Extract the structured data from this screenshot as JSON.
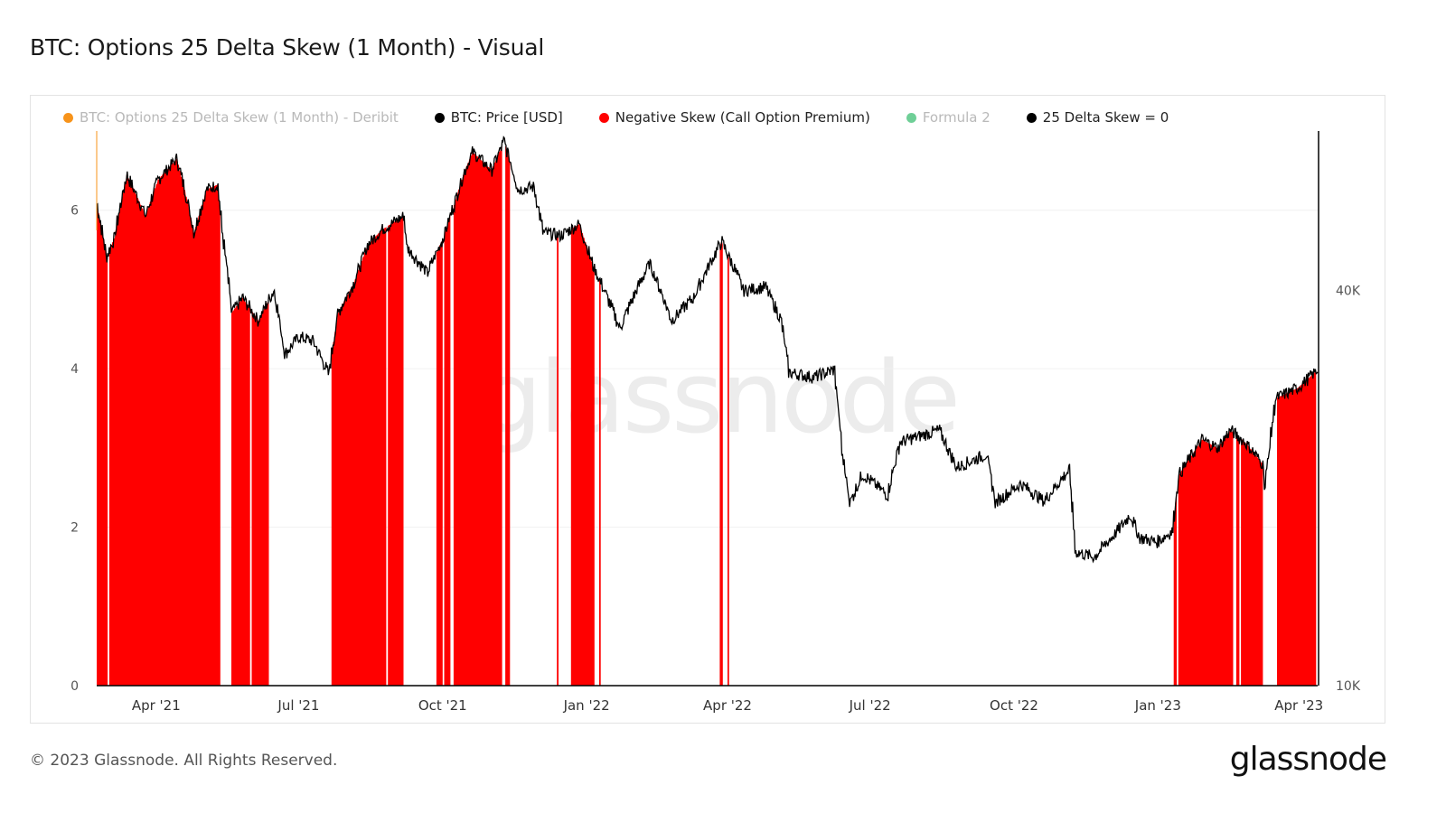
{
  "title": "BTC: Options 25 Delta Skew (1 Month) - Visual",
  "footer": {
    "copyright": "© 2023 Glassnode. All Rights Reserved.",
    "brand": "glassnode"
  },
  "watermark": "glassnode",
  "legend": [
    {
      "label": "BTC: Options 25 Delta Skew (1 Month) - Deribit",
      "color": "#f7931a",
      "muted": true
    },
    {
      "label": "BTC: Price [USD]",
      "color": "#000000",
      "muted": false
    },
    {
      "label": "Negative Skew (Call Option Premium)",
      "color": "#ff0000",
      "muted": false
    },
    {
      "label": "Formula 2",
      "color": "#6fcf97",
      "muted": true
    },
    {
      "label": "25 Delta Skew = 0",
      "color": "#000000",
      "muted": false
    }
  ],
  "chart_data": {
    "type": "area",
    "x_ticks": [
      "Apr '21",
      "Jul '21",
      "Oct '21",
      "Jan '22",
      "Apr '22",
      "Jul '22",
      "Oct '22",
      "Jan '23",
      "Apr '23"
    ],
    "x_tick_dates": [
      "2021-04-01",
      "2021-07-01",
      "2021-10-01",
      "2022-01-01",
      "2022-04-01",
      "2022-07-01",
      "2022-10-01",
      "2023-01-01",
      "2023-04-01"
    ],
    "x_range": [
      "2021-02-22",
      "2023-04-13"
    ],
    "left_axis": {
      "ticks": [
        "0",
        "2",
        "4",
        "6"
      ],
      "range": [
        0,
        7
      ]
    },
    "right_axis": {
      "ticks": [
        "10K",
        "40K"
      ],
      "scale": "log",
      "range": [
        10000,
        70000
      ]
    },
    "price_series": {
      "name": "BTC: Price [USD]",
      "color": "#000000",
      "points": [
        [
          "2021-02-22",
          54000
        ],
        [
          "2021-02-28",
          45000
        ],
        [
          "2021-03-05",
          48000
        ],
        [
          "2021-03-13",
          60000
        ],
        [
          "2021-03-25",
          52000
        ],
        [
          "2021-04-02",
          59000
        ],
        [
          "2021-04-14",
          63500
        ],
        [
          "2021-04-25",
          49000
        ],
        [
          "2021-05-03",
          57000
        ],
        [
          "2021-05-10",
          58000
        ],
        [
          "2021-05-13",
          49000
        ],
        [
          "2021-05-19",
          37000
        ],
        [
          "2021-05-26",
          39000
        ],
        [
          "2021-06-05",
          36000
        ],
        [
          "2021-06-15",
          40000
        ],
        [
          "2021-06-22",
          32000
        ],
        [
          "2021-07-01",
          34000
        ],
        [
          "2021-07-10",
          33500
        ],
        [
          "2021-07-20",
          29800
        ],
        [
          "2021-07-26",
          37000
        ],
        [
          "2021-08-05",
          41000
        ],
        [
          "2021-08-14",
          47000
        ],
        [
          "2021-08-23",
          49500
        ],
        [
          "2021-09-06",
          52000
        ],
        [
          "2021-09-08",
          46500
        ],
        [
          "2021-09-21",
          42500
        ],
        [
          "2021-10-01",
          48000
        ],
        [
          "2021-10-08",
          54000
        ],
        [
          "2021-10-15",
          61000
        ],
        [
          "2021-10-20",
          65000
        ],
        [
          "2021-11-01",
          61000
        ],
        [
          "2021-11-09",
          67500
        ],
        [
          "2021-11-18",
          57000
        ],
        [
          "2021-11-28",
          57500
        ],
        [
          "2021-12-04",
          49000
        ],
        [
          "2021-12-15",
          48500
        ],
        [
          "2021-12-27",
          50500
        ],
        [
          "2022-01-05",
          43500
        ],
        [
          "2022-01-22",
          35000
        ],
        [
          "2022-02-10",
          44000
        ],
        [
          "2022-02-24",
          36000
        ],
        [
          "2022-03-10",
          39000
        ],
        [
          "2022-03-28",
          47500
        ],
        [
          "2022-04-11",
          40000
        ],
        [
          "2022-04-25",
          40500
        ],
        [
          "2022-05-05",
          36000
        ],
        [
          "2022-05-10",
          30000
        ],
        [
          "2022-05-26",
          29500
        ],
        [
          "2022-06-08",
          30300
        ],
        [
          "2022-06-13",
          22500
        ],
        [
          "2022-06-18",
          19000
        ],
        [
          "2022-06-26",
          21000
        ],
        [
          "2022-07-12",
          19500
        ],
        [
          "2022-07-20",
          23500
        ],
        [
          "2022-08-14",
          24500
        ],
        [
          "2022-08-25",
          21500
        ],
        [
          "2022-09-13",
          22500
        ],
        [
          "2022-09-19",
          19000
        ],
        [
          "2022-10-05",
          20300
        ],
        [
          "2022-10-20",
          19100
        ],
        [
          "2022-11-05",
          21300
        ],
        [
          "2022-11-09",
          16000
        ],
        [
          "2022-11-21",
          15700
        ],
        [
          "2022-12-05",
          17100
        ],
        [
          "2022-12-14",
          18200
        ],
        [
          "2022-12-20",
          16800
        ],
        [
          "2022-12-31",
          16550
        ],
        [
          "2023-01-10",
          17200
        ],
        [
          "2023-01-14",
          20900
        ],
        [
          "2023-01-29",
          23700
        ],
        [
          "2023-02-08",
          23000
        ],
        [
          "2023-02-16",
          24500
        ],
        [
          "2023-02-26",
          23400
        ],
        [
          "2023-03-09",
          21700
        ],
        [
          "2023-03-10",
          20000
        ],
        [
          "2023-03-17",
          27400
        ],
        [
          "2023-03-31",
          28400
        ],
        [
          "2023-04-13",
          30300
        ]
      ]
    },
    "negative_skew_periods": {
      "name": "Negative Skew (Call Option Premium)",
      "color": "#ff0000",
      "ranges": [
        [
          "2021-02-22",
          "2021-03-01"
        ],
        [
          "2021-03-02",
          "2021-05-12"
        ],
        [
          "2021-05-19",
          "2021-05-31"
        ],
        [
          "2021-06-01",
          "2021-06-12"
        ],
        [
          "2021-07-22",
          "2021-08-26"
        ],
        [
          "2021-08-27",
          "2021-09-06"
        ],
        [
          "2021-09-27",
          "2021-10-01"
        ],
        [
          "2021-10-02",
          "2021-10-06"
        ],
        [
          "2021-10-08",
          "2021-11-08"
        ],
        [
          "2021-11-10",
          "2021-11-13"
        ],
        [
          "2021-12-13",
          "2021-12-14"
        ],
        [
          "2021-12-22",
          "2022-01-06"
        ],
        [
          "2022-01-09",
          "2022-01-10"
        ],
        [
          "2022-03-27",
          "2022-03-29"
        ],
        [
          "2022-04-01",
          "2022-04-02"
        ],
        [
          "2023-01-11",
          "2023-01-13"
        ],
        [
          "2023-01-14",
          "2023-02-18"
        ],
        [
          "2023-02-20",
          "2023-02-22"
        ],
        [
          "2023-02-23",
          "2023-03-09"
        ],
        [
          "2023-03-18",
          "2023-04-12"
        ]
      ]
    },
    "zero_line": {
      "name": "25 Delta Skew = 0",
      "value": 0,
      "color": "#000000"
    },
    "grid": true,
    "legend_position": "top"
  }
}
